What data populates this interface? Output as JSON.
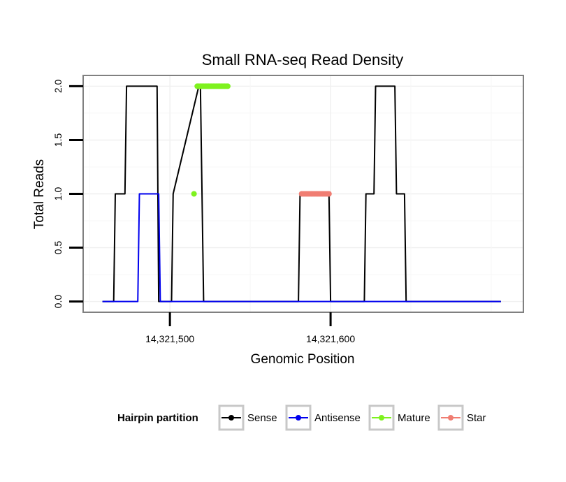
{
  "chart_data": {
    "type": "line",
    "title": "Small RNA-seq Read Density",
    "xlabel": "Genomic Position",
    "ylabel": "Total Reads",
    "xlim": [
      14321446,
      14321720
    ],
    "ylim": [
      -0.1,
      2.1
    ],
    "xticks": [
      14321500,
      14321600
    ],
    "xtick_labels": [
      "14,321,500",
      "14,321,600"
    ],
    "yticks": [
      0,
      0.5,
      1,
      1.5,
      2
    ],
    "ytick_labels": [
      "0.0",
      "0.5",
      "1.0",
      "1.5",
      "2.0"
    ],
    "grid": true,
    "legend": {
      "title": "Hairpin partition",
      "position": "bottom",
      "entries": [
        "Sense",
        "Antisense",
        "Mature",
        "Star"
      ]
    },
    "series": [
      {
        "name": "Sense",
        "color": "#000000",
        "style": "line",
        "x": [
          14321458,
          14321465,
          14321466,
          14321472,
          14321473,
          14321492,
          14321493,
          14321497,
          14321498,
          14321501,
          14321502,
          14321518,
          14321519,
          14321520,
          14321521,
          14321580,
          14321581,
          14321599,
          14321600,
          14321621,
          14321622,
          14321627,
          14321628,
          14321640,
          14321641,
          14321646,
          14321647,
          14321706
        ],
        "y": [
          0,
          0,
          1,
          1,
          2,
          2,
          0,
          0,
          0,
          0,
          1,
          2,
          2,
          1,
          0,
          0,
          1,
          1,
          0,
          0,
          1,
          1,
          2,
          2,
          1,
          1,
          0,
          0
        ]
      },
      {
        "name": "Antisense",
        "color": "#0000ee",
        "style": "line",
        "x": [
          14321458,
          14321480,
          14321481,
          14321493,
          14321494,
          14321706
        ],
        "y": [
          0,
          0,
          1,
          1,
          0,
          0
        ]
      },
      {
        "name": "Mature",
        "color": "#7ef21e",
        "style": "points",
        "x": [
          14321515,
          14321517,
          14321518,
          14321519,
          14321520,
          14321521,
          14321522,
          14321523,
          14321524,
          14321525,
          14321526,
          14321527,
          14321528,
          14321529,
          14321530,
          14321531,
          14321532,
          14321533,
          14321534,
          14321535,
          14321536
        ],
        "y": [
          1,
          2,
          2,
          2,
          2,
          2,
          2,
          2,
          2,
          2,
          2,
          2,
          2,
          2,
          2,
          2,
          2,
          2,
          2,
          2,
          2
        ]
      },
      {
        "name": "Star",
        "color": "#f07d72",
        "style": "points",
        "x": [
          14321582,
          14321583,
          14321584,
          14321585,
          14321586,
          14321587,
          14321588,
          14321589,
          14321590,
          14321591,
          14321592,
          14321593,
          14321594,
          14321595,
          14321596,
          14321597,
          14321598,
          14321599
        ],
        "y": [
          1,
          1,
          1,
          1,
          1,
          1,
          1,
          1,
          1,
          1,
          1,
          1,
          1,
          1,
          1,
          1,
          1,
          1
        ]
      }
    ]
  }
}
